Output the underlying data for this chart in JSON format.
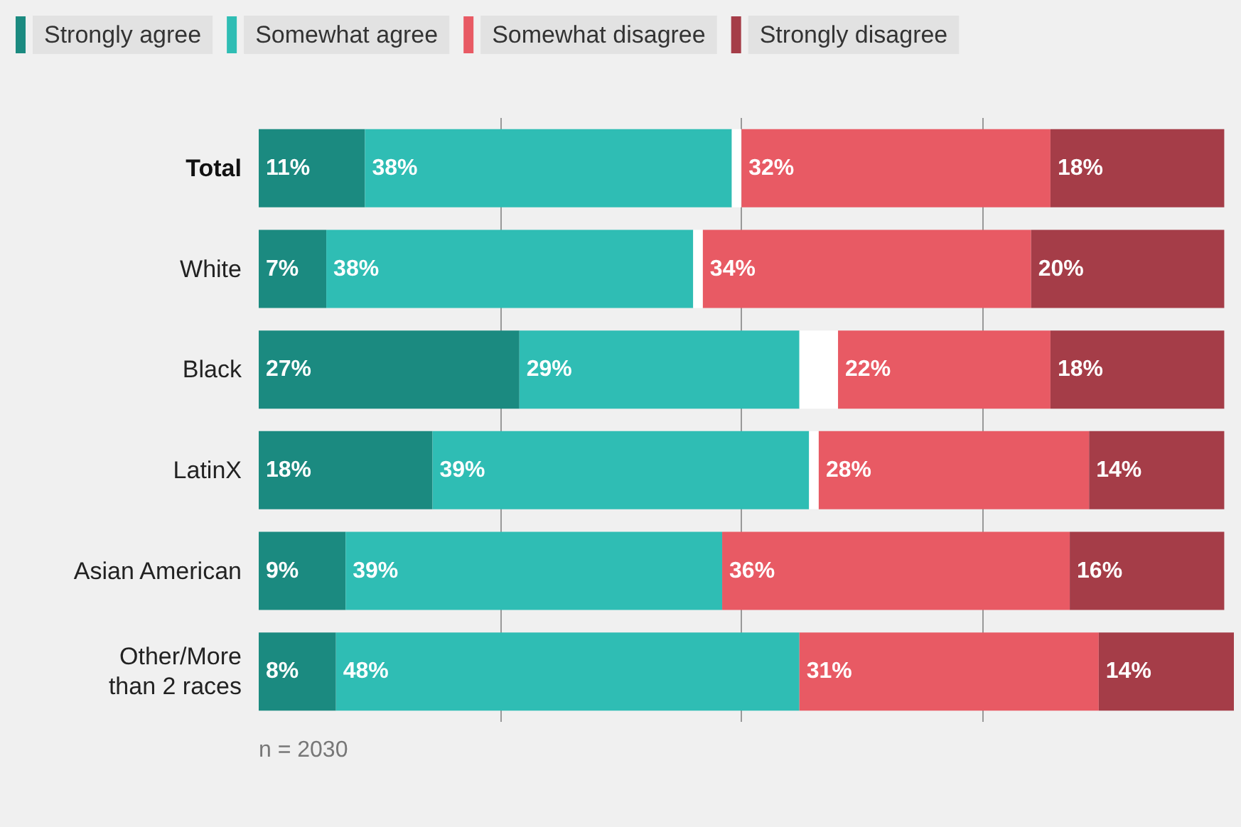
{
  "chart_data": {
    "type": "bar",
    "orientation": "horizontal",
    "stacked": true,
    "categories": [
      "Total",
      "White",
      "Black",
      "LatinX",
      "Asian American",
      "Other/More\nthan 2 races"
    ],
    "series": [
      {
        "name": "Strongly agree",
        "color": "#1b8a80",
        "values": [
          11,
          7,
          27,
          18,
          9,
          8
        ],
        "value_labels": [
          "11%",
          "7%",
          "27%",
          "18%",
          "9%",
          "8%"
        ]
      },
      {
        "name": "Somewhat agree",
        "color": "#2fbdb4",
        "values": [
          38,
          38,
          29,
          39,
          39,
          48
        ],
        "value_labels": [
          "38%",
          "38%",
          "29%",
          "39%",
          "39%",
          "48%"
        ]
      },
      {
        "color": "#ffffff",
        "values": [
          1,
          1,
          4,
          1,
          null,
          null
        ],
        "value_labels": [
          null,
          null,
          null,
          null,
          null,
          null
        ]
      },
      {
        "name": "Somewhat disagree",
        "color": "#e85a64",
        "values": [
          32,
          34,
          22,
          28,
          36,
          31
        ],
        "value_labels": [
          "32%",
          "34%",
          "22%",
          "28%",
          "36%",
          "31%"
        ]
      },
      {
        "name": "Strongly disagree",
        "color": "#a53d48",
        "values": [
          18,
          20,
          18,
          14,
          16,
          14
        ],
        "value_labels": [
          "18%",
          "20%",
          "18%",
          "14%",
          "16%",
          "14%"
        ]
      }
    ],
    "xlim": [
      0,
      101
    ],
    "xticks": [
      {
        "value": 25,
        "label": null
      },
      {
        "value": 50,
        "label": null
      },
      {
        "value": 75,
        "label": null
      }
    ],
    "tick_labels": "y",
    "grid": "x",
    "legend": "top left",
    "annotations": [
      "n = 2030"
    ]
  }
}
